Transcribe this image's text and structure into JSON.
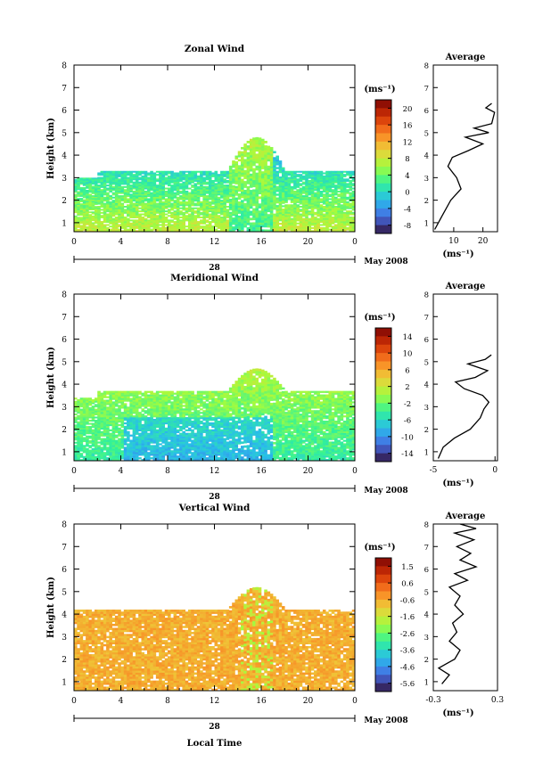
{
  "chart_data": [
    {
      "type": "heatmap",
      "title": "Zonal Wind",
      "ylabel": "Height (km)",
      "unit_label": "(ms⁻¹)",
      "date_label": "May 2008",
      "day_label": "28",
      "xticks": [
        "0",
        "4",
        "8",
        "12",
        "16",
        "20",
        "0"
      ],
      "yticks": [
        "1",
        "2",
        "3",
        "4",
        "5",
        "6",
        "7",
        "8"
      ],
      "ylim": [
        0.6,
        8
      ],
      "colorbar": {
        "ticks": [
          "20",
          "16",
          "12",
          "8",
          "4",
          "0",
          "-4",
          "-8"
        ],
        "vmin": -10,
        "vmax": 22
      },
      "average": {
        "title": "Average",
        "xlabel": "(ms⁻¹)",
        "xticks": [
          "10",
          "20"
        ],
        "xlim": [
          3,
          25
        ],
        "profile": [
          [
            3.5,
            0.7
          ],
          [
            6,
            1.3
          ],
          [
            9,
            2.0
          ],
          [
            12.5,
            2.5
          ],
          [
            11,
            3.0
          ],
          [
            8,
            3.5
          ],
          [
            9.5,
            3.9
          ],
          [
            15,
            4.2
          ],
          [
            20,
            4.5
          ],
          [
            14,
            4.8
          ],
          [
            22,
            5.0
          ],
          [
            17,
            5.2
          ],
          [
            23,
            5.4
          ],
          [
            24,
            5.9
          ],
          [
            21,
            6.1
          ],
          [
            23,
            6.3
          ]
        ]
      }
    },
    {
      "type": "heatmap",
      "title": "Meridional Wind",
      "ylabel": "Height (km)",
      "unit_label": "(ms⁻¹)",
      "date_label": "May 2008",
      "day_label": "28",
      "xticks": [
        "0",
        "4",
        "8",
        "12",
        "16",
        "20",
        "0"
      ],
      "yticks": [
        "1",
        "2",
        "3",
        "4",
        "5",
        "6",
        "7",
        "8"
      ],
      "ylim": [
        0.6,
        8
      ],
      "colorbar": {
        "ticks": [
          "14",
          "10",
          "6",
          "2",
          "-2",
          "-6",
          "-10",
          "-14"
        ],
        "vmin": -16,
        "vmax": 16
      },
      "average": {
        "title": "Average",
        "xlabel": "(ms⁻¹)",
        "xticks": [
          "-5",
          "0"
        ],
        "xlim": [
          -5,
          0.2
        ],
        "profile": [
          [
            -4.6,
            0.7
          ],
          [
            -4.2,
            1.2
          ],
          [
            -3.3,
            1.6
          ],
          [
            -2,
            2.0
          ],
          [
            -1.2,
            2.5
          ],
          [
            -0.9,
            2.9
          ],
          [
            -0.5,
            3.2
          ],
          [
            -1,
            3.5
          ],
          [
            -2.5,
            3.8
          ],
          [
            -3.2,
            4.1
          ],
          [
            -1.6,
            4.3
          ],
          [
            -0.6,
            4.6
          ],
          [
            -2.2,
            4.9
          ],
          [
            -0.8,
            5.1
          ],
          [
            -0.3,
            5.3
          ]
        ]
      }
    },
    {
      "type": "heatmap",
      "title": "Vertical Wind",
      "ylabel": "Height (km)",
      "xlabel": "Local Time",
      "unit_label": "(ms⁻¹)",
      "date_label": "May 2008",
      "day_label": "28",
      "xticks": [
        "0",
        "4",
        "8",
        "12",
        "16",
        "20",
        "0"
      ],
      "yticks": [
        "1",
        "2",
        "3",
        "4",
        "5",
        "6",
        "7",
        "8"
      ],
      "ylim": [
        0.6,
        8
      ],
      "colorbar": {
        "ticks": [
          "1.5",
          "0.6",
          "-0.6",
          "-1.6",
          "-2.6",
          "-3.6",
          "-4.6",
          "-5.6"
        ],
        "vmin": -6,
        "vmax": 2
      },
      "average": {
        "title": "Average",
        "xlabel": "(ms⁻¹)",
        "xticks": [
          "-0.3",
          "0.3"
        ],
        "xlim": [
          -0.3,
          0.3
        ],
        "profile": [
          [
            -0.22,
            0.9
          ],
          [
            -0.15,
            1.3
          ],
          [
            -0.25,
            1.6
          ],
          [
            -0.1,
            2.0
          ],
          [
            -0.05,
            2.4
          ],
          [
            -0.15,
            2.8
          ],
          [
            -0.08,
            3.2
          ],
          [
            -0.12,
            3.6
          ],
          [
            -0.02,
            4.0
          ],
          [
            -0.1,
            4.4
          ],
          [
            -0.05,
            4.8
          ],
          [
            -0.15,
            5.2
          ],
          [
            0.02,
            5.5
          ],
          [
            -0.1,
            5.8
          ],
          [
            0.1,
            6.1
          ],
          [
            -0.05,
            6.4
          ],
          [
            0.05,
            6.7
          ],
          [
            -0.08,
            7.0
          ],
          [
            0.08,
            7.3
          ],
          [
            -0.1,
            7.6
          ],
          [
            0.1,
            7.8
          ],
          [
            -0.05,
            8.0
          ]
        ]
      }
    }
  ]
}
